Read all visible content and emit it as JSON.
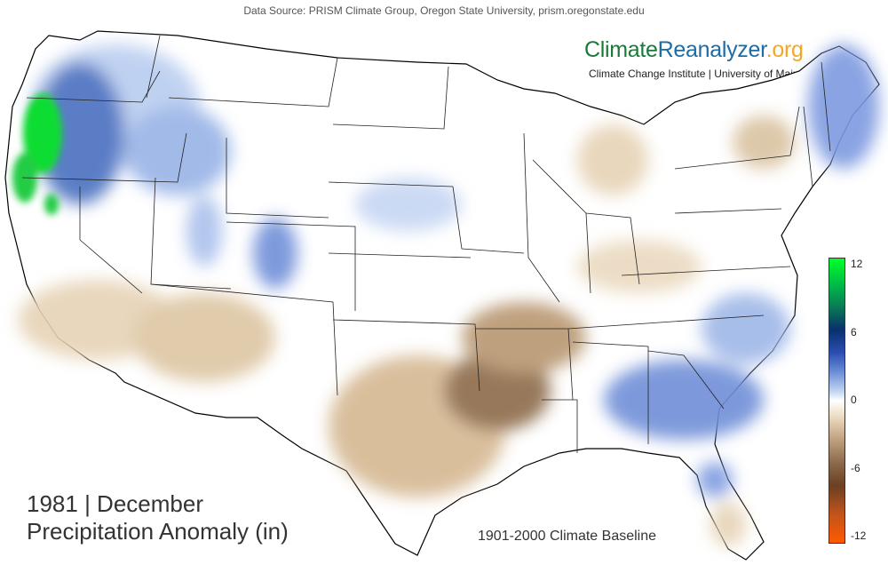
{
  "source": "Data Source: PRISM Climate Group, Oregon State University, prism.oregonstate.edu",
  "brand": {
    "part1": "Climate",
    "part2": "Reanalyzer",
    "part3": ".org",
    "institute": "Climate Change Institute | University of Maine"
  },
  "title_line1": "1981 | December",
  "title_line2": "Precipitation Anomaly (in)",
  "baseline": "1901-2000 Climate Baseline",
  "colorbar": {
    "ticks": [
      "12",
      "6",
      "0",
      "-6",
      "-12"
    ],
    "colors": [
      "#00ff28",
      "#08306b",
      "#ffffff",
      "#6b3f22",
      "#ff5a00"
    ]
  },
  "map": {
    "region": "Contiguous United States",
    "wet_areas": [
      "Pacific Northwest",
      "Northern Rockies",
      "Colorado Rockies",
      "Northern Plains",
      "Georgia & Carolinas",
      "New England",
      "Florida Panhandle"
    ],
    "dry_areas": [
      "California",
      "Southwest",
      "Texas",
      "Oklahoma",
      "Arkansas",
      "Ohio Valley",
      "New York",
      "Michigan"
    ]
  }
}
